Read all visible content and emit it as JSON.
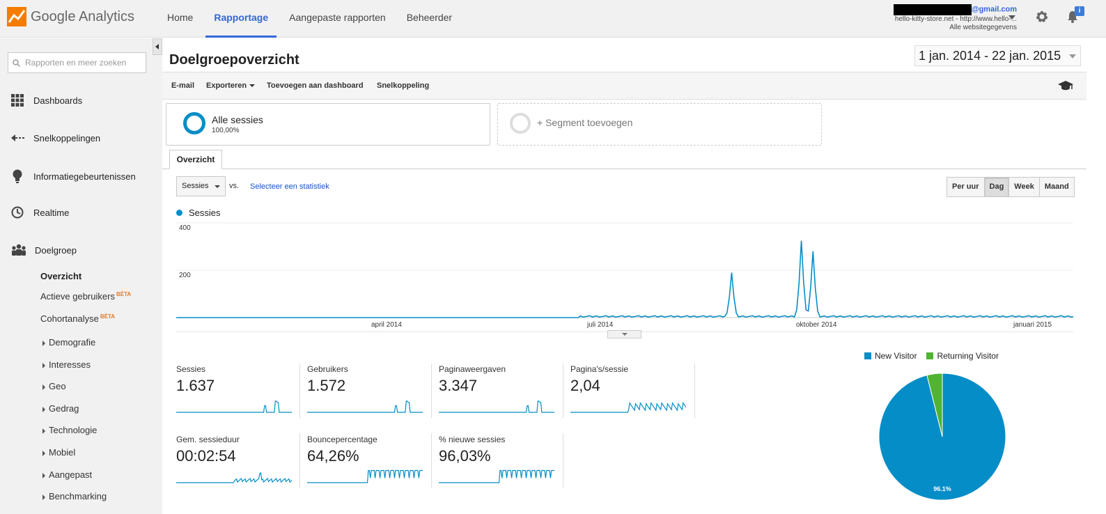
{
  "topbar": {
    "logo_text": "Google Analytics",
    "nav": [
      "Home",
      "Rapportage",
      "Aangepaste rapporten",
      "Beheerder"
    ],
    "account_email_suffix": "@gmail.com",
    "account_property": "hello-kitty-store.net - http://www.hello-...",
    "account_view": "Alle websitegegevens",
    "notification_badge": "i"
  },
  "sidebar": {
    "search_placeholder": "Rapporten en meer zoeken",
    "main_items": [
      "Dashboards",
      "Snelkoppelingen",
      "Informatiegebeurtenissen",
      "Realtime",
      "Doelgroep"
    ],
    "sub_overview": "Overzicht",
    "sub_active": "Actieve gebruikers",
    "sub_cohort": "Cohortanalyse",
    "beta": "BÈTA",
    "tree_items": [
      "Demografie",
      "Interesses",
      "Geo",
      "Gedrag",
      "Technologie",
      "Mobiel",
      "Aangepast",
      "Benchmarking"
    ]
  },
  "page": {
    "title": "Doelgroepoverzicht",
    "date_range": "1 jan. 2014 - 22 jan. 2015"
  },
  "toolbar": {
    "email": "E-mail",
    "export": "Exporteren",
    "add_dashboard": "Toevoegen aan dashboard",
    "shortcut": "Snelkoppeling"
  },
  "segments": {
    "all_name": "Alle sessies",
    "all_pct": "100,00%",
    "add": "+ Segment toevoegen"
  },
  "tab": "Overzicht",
  "controls": {
    "metric_select": "Sessies",
    "vs": "vs.",
    "select_stat": "Selecteer een statistiek",
    "periods": [
      "Per uur",
      "Dag",
      "Week",
      "Maand"
    ],
    "active_period": "Dag"
  },
  "chart_data": {
    "type": "line",
    "series": [
      {
        "name": "Sessies",
        "color": "#058dc7"
      }
    ],
    "ylim": [
      0,
      400
    ],
    "yticks": [
      "400",
      "200"
    ],
    "xticks": [
      "april 2014",
      "juli 2014",
      "oktober 2014",
      "januari 2015"
    ],
    "peaks": [
      {
        "date": "2014-08-28",
        "value": 190
      },
      {
        "date": "2014-09-27",
        "value": 325
      },
      {
        "date": "2014-10-02",
        "value": 280
      }
    ]
  },
  "metrics": [
    {
      "label": "Sessies",
      "value": "1.637"
    },
    {
      "label": "Gebruikers",
      "value": "1.572"
    },
    {
      "label": "Paginaweergaven",
      "value": "3.347"
    },
    {
      "label": "Pagina's/sessie",
      "value": "2,04"
    },
    {
      "label": "Gem. sessieduur",
      "value": "00:02:54"
    },
    {
      "label": "Bouncepercentage",
      "value": "64,26%"
    },
    {
      "label": "% nieuwe sessies",
      "value": "96,03%"
    }
  ],
  "pie": {
    "legend": [
      "New Visitor",
      "Returning Visitor"
    ],
    "colors": [
      "#058dc7",
      "#50b432"
    ],
    "values": [
      96.1,
      3.9
    ],
    "label": "96.1%"
  }
}
